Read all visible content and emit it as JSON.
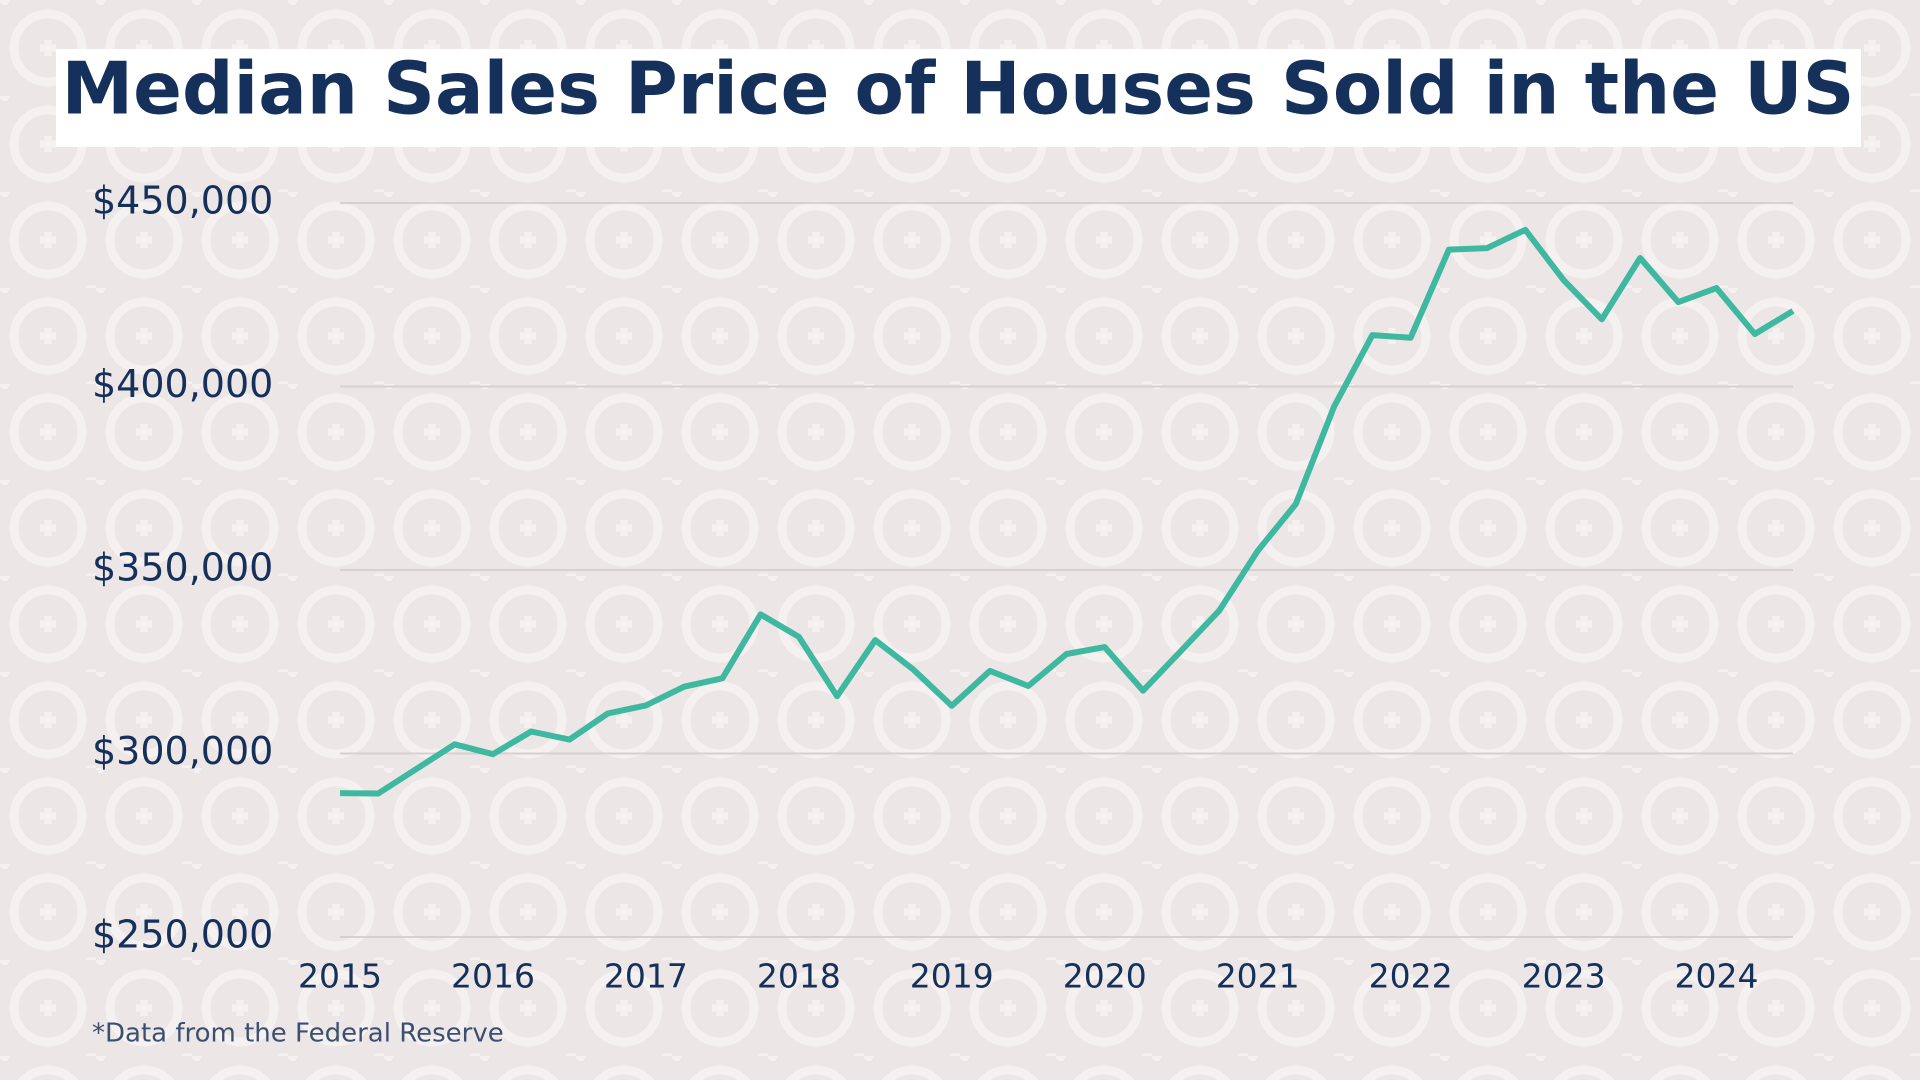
{
  "chart_data": {
    "type": "line",
    "title": "Median Sales Price of Houses Sold in the US",
    "note": "*Data from the Federal Reserve",
    "x": [
      2015,
      2015.25,
      2015.5,
      2015.75,
      2016,
      2016.25,
      2016.5,
      2016.75,
      2017,
      2017.25,
      2017.5,
      2017.75,
      2018,
      2018.25,
      2018.5,
      2018.75,
      2019,
      2019.25,
      2019.5,
      2019.75,
      2020,
      2020.25,
      2020.5,
      2020.75,
      2021,
      2021.25,
      2021.5,
      2021.75,
      2022,
      2022.25,
      2022.5,
      2022.75,
      2023,
      2023.25,
      2023.5,
      2023.75,
      2024,
      2024.25,
      2024.5
    ],
    "series": [
      {
        "name": "Median Sales Price",
        "color": "#3fb8a0",
        "values": [
          289200,
          289100,
          295800,
          302500,
          299800,
          306000,
          303800,
          310900,
          313100,
          318200,
          320500,
          337900,
          331800,
          315600,
          330900,
          322800,
          313000,
          322500,
          318400,
          327100,
          329000,
          317100,
          328000,
          339000,
          355200,
          368000,
          394600,
          414000,
          413300,
          437300,
          437700,
          442700,
          429000,
          418300,
          435000,
          423000,
          426800,
          414300,
          420600
        ]
      }
    ],
    "xlim": [
      2015,
      2024.5
    ],
    "xticks": [
      2015,
      2016,
      2017,
      2018,
      2019,
      2020,
      2021,
      2022,
      2023,
      2024
    ],
    "ylim": [
      250000,
      450000
    ],
    "yticks": [
      {
        "value": 250000,
        "label": "$250,000"
      },
      {
        "value": 300000,
        "label": "$300,000"
      },
      {
        "value": 350000,
        "label": "$350,000"
      },
      {
        "value": 400000,
        "label": "$400,000"
      },
      {
        "value": 450000,
        "label": "$450,000"
      }
    ],
    "grid": true
  }
}
